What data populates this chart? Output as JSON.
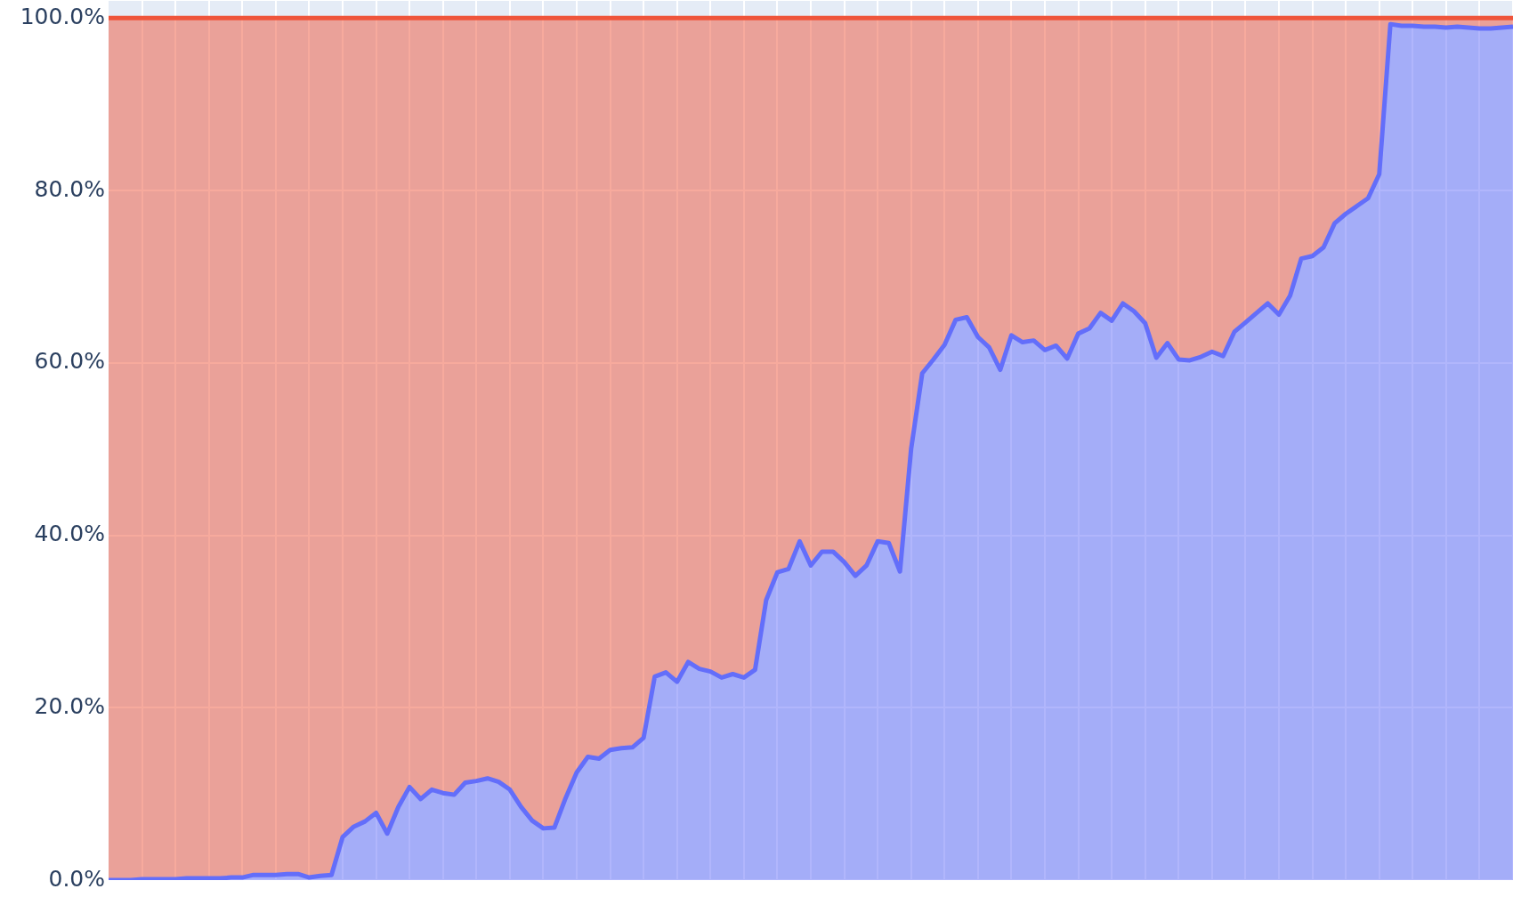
{
  "chart_data": {
    "type": "area",
    "stacked": true,
    "grid": true,
    "marker": "none",
    "line_style": "solid",
    "tick_labels": "y",
    "categories": [
      null,
      null,
      null,
      null,
      null,
      null,
      null,
      null,
      null,
      null,
      null,
      null,
      null,
      null,
      null,
      null,
      null,
      null,
      null,
      null,
      null,
      null,
      null,
      null,
      null,
      null,
      null,
      null,
      null,
      null,
      null,
      null,
      null,
      null,
      null,
      null,
      null,
      null,
      null,
      null,
      null,
      null,
      null,
      null,
      null,
      null,
      null,
      null,
      null,
      null,
      null,
      null,
      null,
      null,
      null,
      null,
      null,
      null,
      null,
      null,
      null,
      null,
      null,
      null,
      null,
      null,
      null,
      null,
      null,
      null,
      null,
      null,
      null,
      null,
      null,
      null,
      null,
      null,
      null,
      null,
      null,
      null,
      null,
      null,
      null,
      null,
      null,
      null,
      null,
      null,
      null,
      null,
      null,
      null,
      null,
      null,
      null,
      null,
      null,
      null,
      null,
      null,
      null,
      null,
      null,
      null,
      null,
      null,
      null,
      null,
      null,
      null,
      null,
      null,
      null,
      null,
      null,
      null,
      null,
      null,
      null,
      null,
      null,
      null,
      null,
      null,
      null
    ],
    "ylim": [
      0,
      102
    ],
    "yticks": [
      {
        "value": 0,
        "label": "0.0%"
      },
      {
        "value": 20,
        "label": "20.0%"
      },
      {
        "value": 40,
        "label": "40.0%"
      },
      {
        "value": 60,
        "label": "60.0%"
      },
      {
        "value": 80,
        "label": "80.0%"
      },
      {
        "value": 100,
        "label": "100.0%"
      }
    ],
    "series": [
      {
        "color": "#636efa",
        "values": [
          0,
          0,
          0,
          0.1,
          0.1,
          0.1,
          0.1,
          0.2,
          0.2,
          0.2,
          0.2,
          0.3,
          0.3,
          0.6,
          0.6,
          0.6,
          0.7,
          0.7,
          0.3,
          0.5,
          0.6,
          5.0,
          6.2,
          6.8,
          7.8,
          5.4,
          8.5,
          10.8,
          9.4,
          10.5,
          10.1,
          9.9,
          11.3,
          11.5,
          11.8,
          11.4,
          10.5,
          8.5,
          6.9,
          6.0,
          6.1,
          9.5,
          12.5,
          14.3,
          14.1,
          15.1,
          15.3,
          15.4,
          16.5,
          23.6,
          24.1,
          23.0,
          25.3,
          24.5,
          24.2,
          23.5,
          23.9,
          23.5,
          24.4,
          32.5,
          35.7,
          36.1,
          39.3,
          36.5,
          38.1,
          38.1,
          36.9,
          35.3,
          36.5,
          39.3,
          39.1,
          35.8,
          50.0,
          58.8,
          60.4,
          62.1,
          65.0,
          65.3,
          63.0,
          61.8,
          59.2,
          63.2,
          62.4,
          62.6,
          61.5,
          62.0,
          60.5,
          63.4,
          64.0,
          65.8,
          64.9,
          66.9,
          66.0,
          64.6,
          60.6,
          62.3,
          60.4,
          60.3,
          60.7,
          61.3,
          60.8,
          63.6,
          64.7,
          65.8,
          66.9,
          65.6,
          67.8,
          72.1,
          72.4,
          73.4,
          76.2,
          77.3,
          78.2,
          79.1,
          81.9,
          99.3,
          99.1,
          99.1,
          99.0,
          99.0,
          98.9,
          99.0,
          98.9,
          98.8,
          98.8,
          98.9,
          99.0
        ]
      },
      {
        "color": "#ef553b",
        "values": [
          100,
          100,
          100,
          99.9,
          99.9,
          99.9,
          99.9,
          99.8,
          99.8,
          99.8,
          99.8,
          99.7,
          99.7,
          99.4,
          99.4,
          99.4,
          99.3,
          99.3,
          99.7,
          99.5,
          99.4,
          95.0,
          93.8,
          93.2,
          92.2,
          94.6,
          91.5,
          89.2,
          90.6,
          89.5,
          89.9,
          90.1,
          88.7,
          88.5,
          88.2,
          88.6,
          89.5,
          91.5,
          93.1,
          94.0,
          93.9,
          90.5,
          87.5,
          85.7,
          85.9,
          84.9,
          84.7,
          84.6,
          83.5,
          76.4,
          75.9,
          77.0,
          74.7,
          75.5,
          75.8,
          76.5,
          76.1,
          76.5,
          75.6,
          67.5,
          64.3,
          63.9,
          60.7,
          63.5,
          61.9,
          61.9,
          63.1,
          64.7,
          63.5,
          60.7,
          60.9,
          64.2,
          50.0,
          41.2,
          39.6,
          37.9,
          35.0,
          34.7,
          37.0,
          38.2,
          40.8,
          36.8,
          37.6,
          37.4,
          38.5,
          38.0,
          39.5,
          36.6,
          36.0,
          34.2,
          35.1,
          33.1,
          34.0,
          35.4,
          39.4,
          37.7,
          39.6,
          39.7,
          39.3,
          38.7,
          39.2,
          36.4,
          35.3,
          34.2,
          33.1,
          34.4,
          32.2,
          27.9,
          27.6,
          26.6,
          23.8,
          22.7,
          21.8,
          20.9,
          18.1,
          0.7,
          0.9,
          0.9,
          1.0,
          1.0,
          1.1,
          1.0,
          1.1,
          1.2,
          1.2,
          1.1,
          1.0
        ]
      }
    ]
  }
}
